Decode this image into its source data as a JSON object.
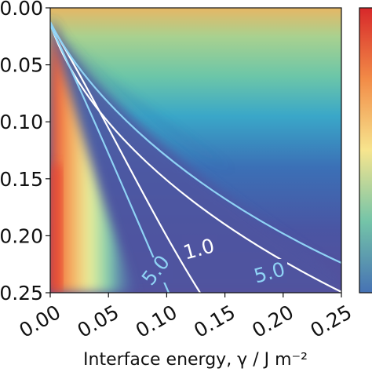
{
  "chart_data": {
    "type": "heatmap",
    "xlabel": "Interface energy, γ / J m⁻²",
    "ylabel": "",
    "x_ticks": [
      "0.00",
      "0.05",
      "0.10",
      "0.15",
      "0.20",
      "0.25"
    ],
    "y_ticks": [
      "0.00",
      "0.05",
      "0.10",
      "0.15",
      "0.20",
      "0.25"
    ],
    "xlim": [
      0,
      0.25
    ],
    "ylim": [
      0.25,
      0
    ],
    "colormap": "rainbow (red to violet)",
    "colorbar": "right edge, partially visible, no tick labels visible",
    "contour_levels": [
      {
        "label": "1.0",
        "color": "#ffffff"
      },
      {
        "label": "5.0",
        "color": "#8fd3f5"
      }
    ]
  }
}
